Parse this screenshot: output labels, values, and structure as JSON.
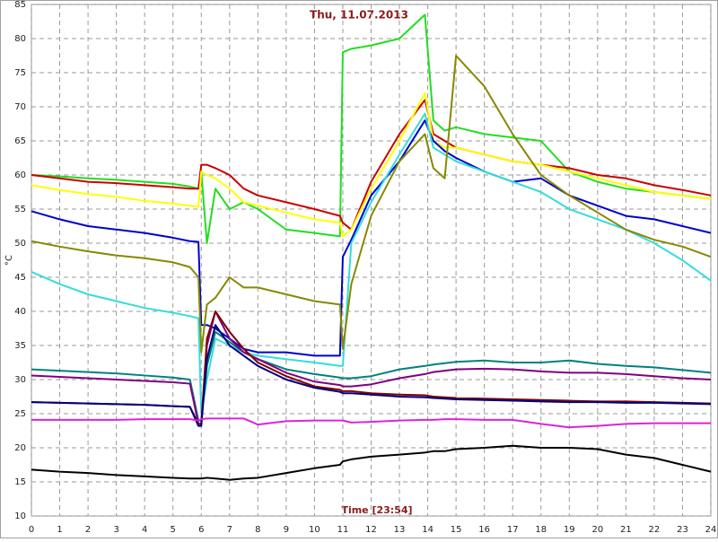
{
  "chart_data": {
    "type": "line",
    "title": "Thu, 11.07.2013",
    "y_label": "°C",
    "x_label": "Time [23:54]",
    "x": [
      0,
      1,
      2,
      3,
      4,
      5,
      5.6,
      5.9,
      6.0,
      6.2,
      6.5,
      7,
      7.5,
      8,
      9,
      10,
      10.9,
      11.0,
      11.3,
      12,
      13,
      13.9,
      14.2,
      14.6,
      15,
      16,
      17,
      18,
      19,
      20,
      21,
      22,
      23,
      24
    ],
    "xlim": [
      0,
      24
    ],
    "xticks": [
      0,
      1,
      2,
      3,
      4,
      5,
      6,
      7,
      8,
      9,
      10,
      11,
      12,
      13,
      14,
      15,
      16,
      17,
      18,
      19,
      20,
      21,
      22,
      23,
      24
    ],
    "ylim": [
      10,
      85
    ],
    "yticks": [
      10,
      15,
      20,
      25,
      30,
      35,
      40,
      45,
      50,
      55,
      60,
      65,
      70,
      75,
      80,
      85
    ],
    "grid": true,
    "series": [
      {
        "color": "#22dd22",
        "values": [
          60,
          59.8,
          59.5,
          59.3,
          59,
          58.7,
          58.3,
          58,
          60.5,
          50,
          58,
          55,
          56,
          55,
          52,
          51.5,
          51,
          78,
          78.5,
          79,
          80,
          83.5,
          68,
          66.5,
          67,
          66,
          65.5,
          65,
          60.5,
          59,
          58,
          57.5,
          57,
          56.5
        ]
      },
      {
        "color": "#cc0000",
        "values": [
          60,
          59.5,
          59,
          58.8,
          58.5,
          58.2,
          58,
          58,
          61.5,
          61.5,
          61,
          60,
          58,
          57,
          56,
          55,
          54,
          53,
          52,
          59,
          66,
          71,
          66,
          65,
          64,
          63,
          62,
          61.5,
          61,
          60,
          59.5,
          58.5,
          57.8,
          57
        ]
      },
      {
        "color": "#ffff00",
        "values": [
          58.5,
          57.8,
          57.2,
          56.8,
          56.2,
          55.8,
          55.5,
          55.3,
          60.5,
          60,
          59.5,
          58,
          56,
          55.5,
          54.5,
          53.5,
          53,
          51,
          52,
          58,
          65,
          72,
          65,
          64,
          64,
          63,
          62,
          61.5,
          60.5,
          59.5,
          58.5,
          57.5,
          57,
          56.5
        ]
      },
      {
        "color": "#0000cc",
        "values": [
          54.7,
          53.5,
          52.5,
          52,
          51.5,
          50.8,
          50.3,
          50.2,
          38,
          38,
          37.5,
          36,
          34.5,
          34,
          34,
          33.5,
          33.5,
          48,
          50.5,
          57,
          62,
          68,
          65,
          63.5,
          62.5,
          60.5,
          59,
          59.5,
          57,
          55.5,
          54,
          53.5,
          52.5,
          51.5
        ]
      },
      {
        "color": "#33dddd",
        "values": [
          45.8,
          44,
          42.5,
          41.5,
          40.5,
          39.8,
          39.3,
          39,
          25,
          30,
          36,
          35,
          34,
          33.5,
          33,
          32.5,
          32,
          32,
          50,
          56,
          63,
          69,
          64,
          63,
          62,
          60.5,
          59,
          57.5,
          55,
          53.5,
          52,
          50,
          47.5,
          44.5
        ]
      },
      {
        "color": "#888800",
        "values": [
          50.3,
          49.5,
          48.8,
          48.2,
          47.8,
          47.2,
          46.5,
          45,
          34,
          41,
          42,
          45,
          43.5,
          43.5,
          42.5,
          41.5,
          41,
          34.5,
          44,
          54,
          62,
          66,
          61,
          59.5,
          77.5,
          73,
          66,
          60,
          57,
          54.5,
          52,
          50.5,
          49.5,
          48
        ]
      },
      {
        "color": "#008080",
        "values": [
          31.5,
          31.3,
          31.1,
          30.9,
          30.6,
          30.3,
          30,
          24,
          24,
          32,
          37,
          35.5,
          34,
          33,
          31.5,
          30.8,
          30.3,
          30.2,
          30.2,
          30.5,
          31.5,
          32,
          32.2,
          32.4,
          32.6,
          32.8,
          32.5,
          32.5,
          32.8,
          32.3,
          32,
          31.8,
          31.4,
          31
        ]
      },
      {
        "color": "#800080",
        "values": [
          30.6,
          30.4,
          30.2,
          30,
          29.8,
          29.6,
          29.4,
          23.5,
          23.5,
          35,
          40,
          36,
          34,
          33,
          31,
          29.7,
          29.2,
          29,
          29,
          29.3,
          30.2,
          30.8,
          31.1,
          31.3,
          31.5,
          31.6,
          31.5,
          31.2,
          31,
          31,
          30.8,
          30.5,
          30.2,
          30
        ]
      },
      {
        "color": "#800000",
        "values": [
          26.7,
          26.6,
          26.5,
          26.4,
          26.3,
          26.1,
          26,
          23.5,
          23.5,
          36,
          40,
          37,
          34.5,
          32.5,
          30.5,
          29,
          28.5,
          28.3,
          28.3,
          28,
          27.8,
          27.7,
          27.5,
          27.4,
          27.3,
          27.2,
          27.1,
          27,
          26.9,
          26.8,
          26.8,
          26.7,
          26.6,
          26.5
        ]
      },
      {
        "color": "#000080",
        "values": [
          26.7,
          26.6,
          26.5,
          26.4,
          26.3,
          26.1,
          26,
          23.2,
          23.2,
          33,
          38,
          35,
          33.5,
          32,
          30,
          28.8,
          28.2,
          28,
          28,
          27.8,
          27.5,
          27.4,
          27.3,
          27.2,
          27.1,
          27,
          26.9,
          26.8,
          26.7,
          26.7,
          26.6,
          26.6,
          26.5,
          26.4
        ]
      },
      {
        "color": "#dd22dd",
        "values": [
          24.1,
          24.1,
          24.1,
          24.1,
          24.2,
          24.2,
          24.2,
          24,
          24.2,
          24.3,
          24.3,
          24.3,
          24.3,
          23.4,
          23.9,
          24,
          24,
          24,
          23.7,
          23.8,
          24,
          24.1,
          24.1,
          24.2,
          24.2,
          24.1,
          24.1,
          23.5,
          23,
          23.2,
          23.5,
          23.6,
          23.6,
          23.6
        ]
      },
      {
        "color": "#000000",
        "values": [
          16.8,
          16.5,
          16.3,
          16,
          15.8,
          15.6,
          15.5,
          15.5,
          15.5,
          15.6,
          15.5,
          15.3,
          15.5,
          15.6,
          16.3,
          17,
          17.5,
          18,
          18.3,
          18.7,
          19,
          19.3,
          19.5,
          19.5,
          19.8,
          20,
          20.3,
          20,
          20,
          19.8,
          19,
          18.5,
          17.5,
          16.5
        ]
      }
    ]
  }
}
